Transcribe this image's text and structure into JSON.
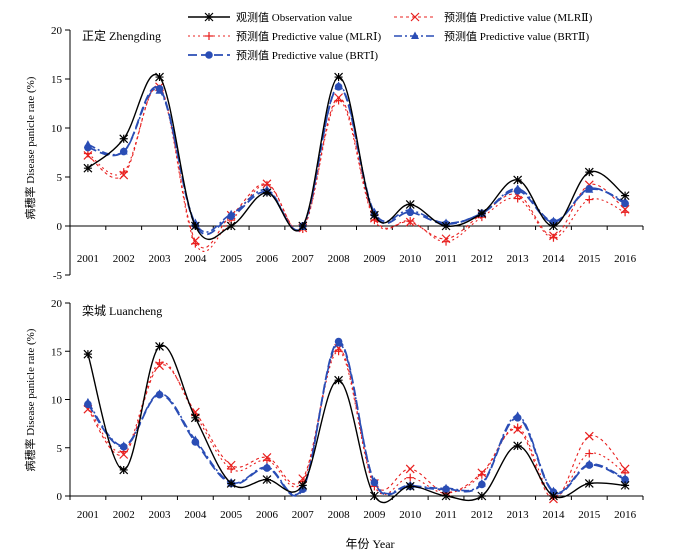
{
  "legend": {
    "obs": "观测值 Observation value",
    "mlr2": "预测值 Predictive value (MLRⅡ)",
    "mlr1": "预测值 Predictive value (MLRⅠ)",
    "brt2": "预测值 Predictive value (BRTⅡ)",
    "brt1": "预测值 Predictive value (BRTⅠ)"
  },
  "colors": {
    "obs": "#000000",
    "mlr1": "#e8201f",
    "mlr2": "#e8201f",
    "brt1": "#2a4db5",
    "brt2": "#2a4db5"
  },
  "xlabel": "年份 Year",
  "chart_data": [
    {
      "type": "line",
      "title": "正定 Zhengding",
      "ylabel": "病穗率 Disease panicle rate (%)",
      "ylim": [
        -5,
        20
      ],
      "yticks": [
        -5,
        0,
        5,
        10,
        15,
        20
      ],
      "x": [
        "2001",
        "2002",
        "2003",
        "2004",
        "2005",
        "2006",
        "2007",
        "2008",
        "2009",
        "2010",
        "2011",
        "2012",
        "2013",
        "2014",
        "2015",
        "2016"
      ],
      "series": [
        {
          "key": "obs",
          "name": "观测值 Observation value",
          "values": [
            5.9,
            8.9,
            15.2,
            0.0,
            0.0,
            3.4,
            0.0,
            15.2,
            1.1,
            2.2,
            0.0,
            1.3,
            4.7,
            0.0,
            5.5,
            3.1
          ]
        },
        {
          "key": "mlr2",
          "name": "预测值 Predictive value (MLRⅡ)",
          "values": [
            7.2,
            5.2,
            14.2,
            -1.5,
            1.1,
            4.3,
            -0.2,
            13.1,
            0.8,
            0.4,
            -1.3,
            1.2,
            3.2,
            -1.0,
            4.2,
            1.7
          ]
        },
        {
          "key": "mlr1",
          "name": "预测值 Predictive value (MLRⅠ)",
          "values": [
            7.4,
            5.5,
            14.0,
            -1.8,
            0.6,
            4.2,
            -0.3,
            12.8,
            0.6,
            0.5,
            -1.6,
            0.9,
            2.8,
            -1.2,
            2.7,
            1.4
          ]
        },
        {
          "key": "brt2",
          "name": "预测值 Predictive value (BRTⅡ)",
          "values": [
            8.3,
            7.6,
            13.8,
            0.3,
            1.2,
            3.7,
            -0.1,
            14.3,
            1.4,
            1.6,
            0.3,
            1.3,
            3.8,
            0.5,
            3.7,
            2.5
          ]
        },
        {
          "key": "brt1",
          "name": "预测值 Predictive value (BRTⅠ)",
          "values": [
            8.0,
            7.6,
            14.0,
            0.1,
            1.0,
            3.5,
            0.0,
            14.2,
            1.2,
            1.4,
            0.2,
            1.3,
            3.6,
            0.4,
            3.8,
            2.3
          ]
        }
      ]
    },
    {
      "type": "line",
      "title": "栾城 Luancheng",
      "ylabel": "病穗率 Disease panicle rate (%)",
      "ylim": [
        0,
        20
      ],
      "yticks": [
        0,
        5,
        10,
        15,
        20
      ],
      "x": [
        "2001",
        "2002",
        "2003",
        "2004",
        "2005",
        "2006",
        "2007",
        "2008",
        "2009",
        "2010",
        "2011",
        "2012",
        "2013",
        "2014",
        "2015",
        "2016"
      ],
      "series": [
        {
          "key": "obs",
          "name": "观测值 Observation value",
          "values": [
            14.7,
            2.7,
            15.5,
            8.1,
            1.3,
            1.7,
            1.1,
            12.0,
            0.0,
            1.0,
            0.0,
            0.0,
            5.2,
            0.0,
            1.3,
            1.1
          ]
        },
        {
          "key": "mlr2",
          "name": "预测值 Predictive value (MLRⅡ)",
          "values": [
            9.0,
            4.3,
            13.5,
            8.7,
            3.2,
            4.0,
            1.8,
            15.3,
            1.3,
            2.8,
            0.4,
            2.4,
            6.9,
            -0.3,
            6.2,
            2.8
          ]
        },
        {
          "key": "mlr1",
          "name": "预测值 Predictive value (MLRⅠ)",
          "values": [
            9.3,
            4.6,
            13.8,
            8.4,
            2.8,
            3.7,
            1.5,
            15.0,
            1.0,
            1.9,
            0.3,
            2.2,
            7.1,
            0.0,
            4.4,
            2.4
          ]
        },
        {
          "key": "brt2",
          "name": "预测值 Predictive value (BRTⅡ)",
          "values": [
            9.7,
            5.2,
            10.6,
            5.8,
            1.4,
            3.0,
            0.8,
            15.8,
            1.5,
            1.1,
            0.8,
            1.3,
            8.3,
            0.5,
            3.3,
            1.8
          ]
        },
        {
          "key": "brt1",
          "name": "预测值 Predictive value (BRTⅠ)",
          "values": [
            9.5,
            5.1,
            10.5,
            5.6,
            1.3,
            2.9,
            0.7,
            16.0,
            1.4,
            1.0,
            0.7,
            1.2,
            8.1,
            0.4,
            3.2,
            1.7
          ]
        }
      ]
    }
  ]
}
